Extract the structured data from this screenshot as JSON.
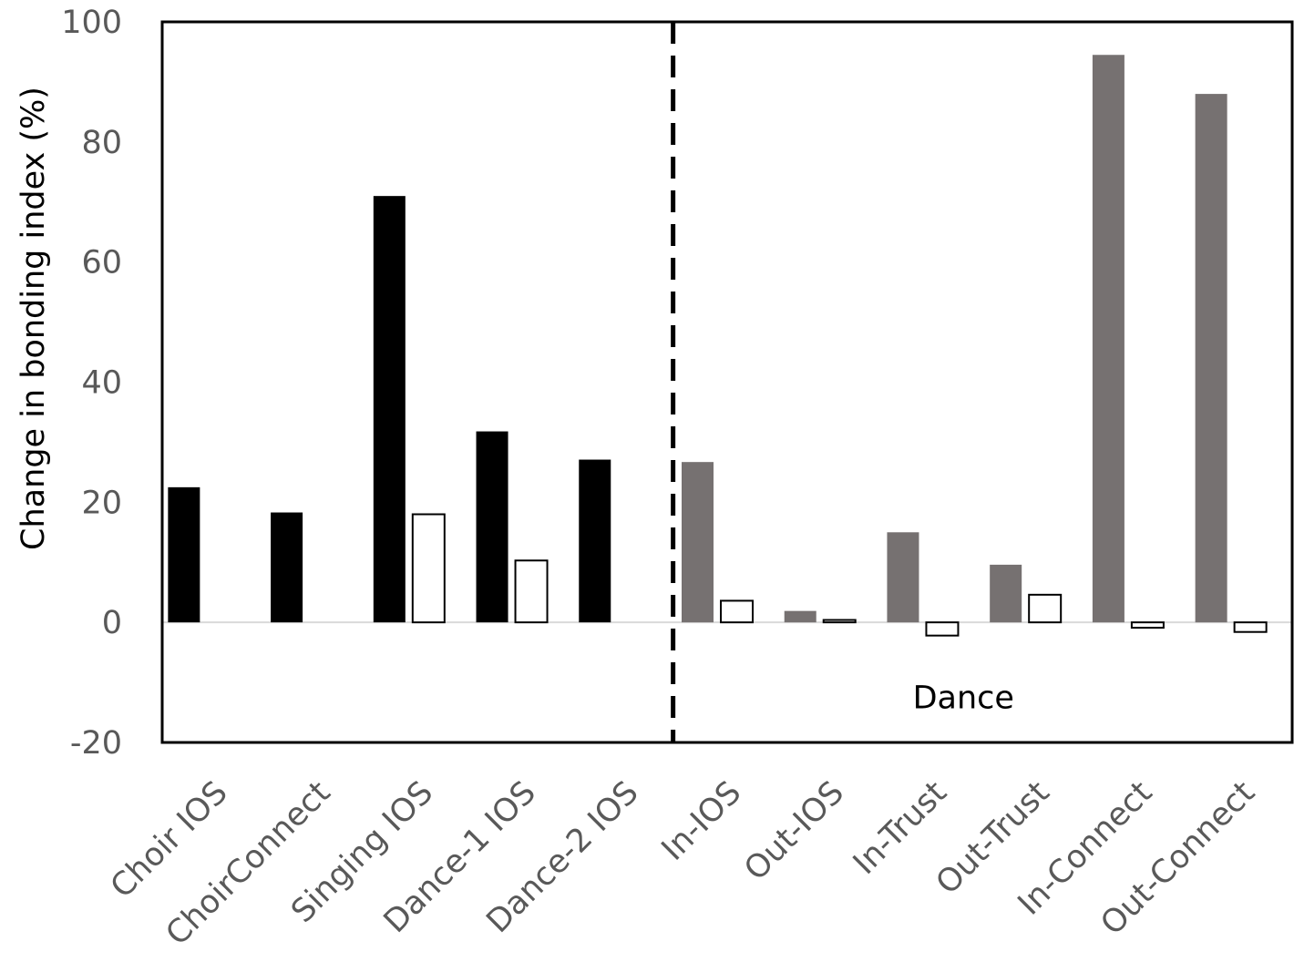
{
  "chart_data": {
    "type": "bar",
    "title": "",
    "xlabel": "",
    "ylabel": "Change in bonding index (%)",
    "ylim": [
      -20,
      100
    ],
    "yticks": [
      -20,
      0,
      20,
      40,
      60,
      80,
      100
    ],
    "grid": false,
    "legend": "none",
    "categories": [
      "Choir IOS",
      "ChoirConnect",
      "Singing IOS",
      "Dance-1 IOS",
      "Dance-2 IOS",
      "In-IOS",
      "Out-IOS",
      "In-Trust",
      "Out-Trust",
      "In-Connect",
      "Out-Connect"
    ],
    "series": [
      {
        "values": [
          22.5,
          18.3,
          71.0,
          31.8,
          27.1,
          26.7,
          1.9,
          15.0,
          9.6,
          94.5,
          88.0
        ],
        "colors": [
          "#000000",
          "#000000",
          "#000000",
          "#000000",
          "#000000",
          "#767171",
          "#767171",
          "#767171",
          "#767171",
          "#767171",
          "#767171"
        ]
      },
      {
        "values": [
          null,
          null,
          18.0,
          10.3,
          null,
          3.6,
          0.4,
          -2.2,
          4.6,
          -0.9,
          -1.6
        ],
        "colors": [
          "#ffffff",
          "#ffffff",
          "#ffffff",
          "#ffffff",
          "#ffffff",
          "#ffffff",
          "#ffffff",
          "#ffffff",
          "#ffffff",
          "#ffffff",
          "#ffffff"
        ]
      }
    ],
    "annotations": [
      {
        "text": "Dance",
        "x": 7.8,
        "y": -12.5
      }
    ],
    "divider_after_index": 4,
    "colors": {
      "text": "#595959",
      "frame": "#000000",
      "zero_line": "#d9d9d9"
    }
  }
}
